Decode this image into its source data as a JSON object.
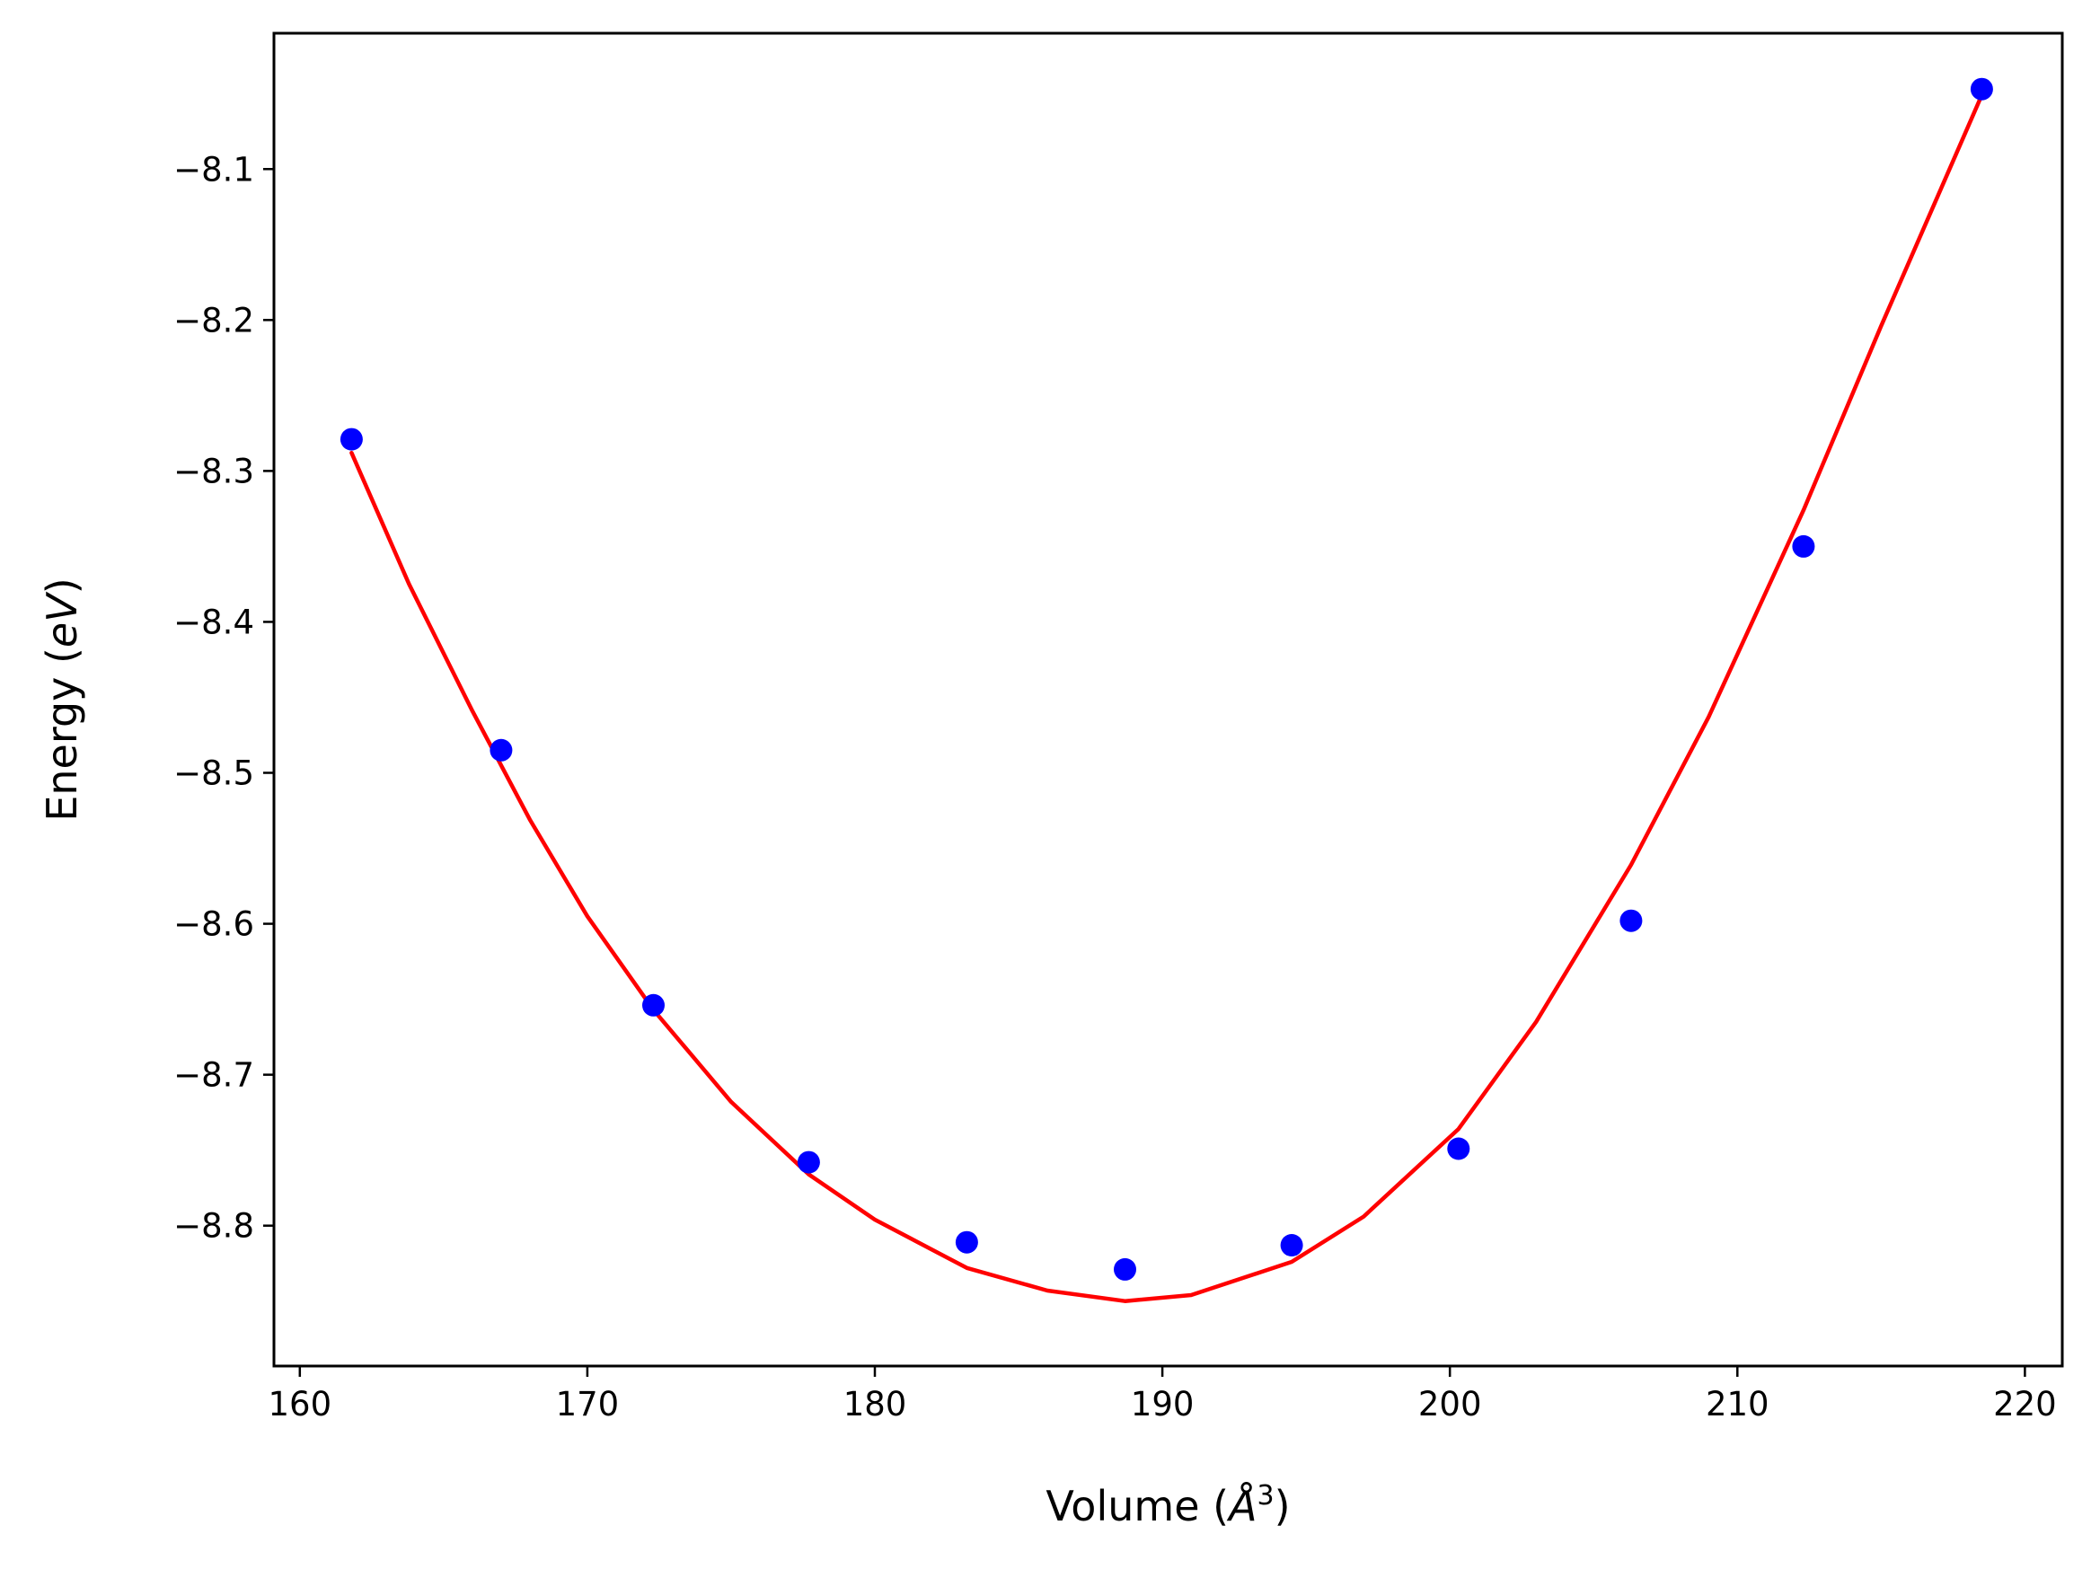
{
  "chart_data": {
    "type": "scatter",
    "title": "",
    "xlabel_parts": {
      "prefix": "Volume (",
      "unit": "Å",
      "power": "3",
      "suffix": ")"
    },
    "ylabel_parts": {
      "prefix": "Energy (",
      "unit": "eV",
      "suffix": ")"
    },
    "xlim": [
      159.1,
      221.3
    ],
    "ylim": [
      -8.893,
      -8.01
    ],
    "x_ticks": [
      160,
      170,
      180,
      190,
      200,
      210,
      220
    ],
    "y_ticks": [
      -8.8,
      -8.7,
      -8.6,
      -8.5,
      -8.4,
      -8.3,
      -8.2,
      -8.1
    ],
    "y_tick_labels": [
      "−8.8",
      "−8.7",
      "−8.6",
      "−8.5",
      "−8.4",
      "−8.3",
      "−8.2",
      "−8.1"
    ],
    "grid": false,
    "series": [
      {
        "kind": "points",
        "color": "#0000ff",
        "x": [
          161.8,
          167.0,
          172.3,
          177.7,
          183.2,
          188.7,
          194.5,
          200.3,
          206.3,
          212.3,
          218.5
        ],
        "y": [
          -8.279,
          -8.485,
          -8.654,
          -8.758,
          -8.811,
          -8.829,
          -8.813,
          -8.749,
          -8.598,
          -8.35,
          -8.047
        ]
      },
      {
        "kind": "fit-line",
        "color": "#ff0000",
        "x": [
          161.8,
          163.8,
          166.0,
          168.0,
          170.0,
          172.3,
          175.0,
          177.7,
          180.0,
          183.2,
          186.0,
          188.7,
          191.0,
          194.5,
          197.0,
          200.3,
          203.0,
          206.3,
          209.0,
          212.3,
          215.0,
          218.5
        ],
        "y": [
          -8.288,
          -8.375,
          -8.459,
          -8.531,
          -8.595,
          -8.657,
          -8.718,
          -8.766,
          -8.796,
          -8.828,
          -8.843,
          -8.85,
          -8.846,
          -8.824,
          -8.794,
          -8.736,
          -8.665,
          -8.561,
          -8.463,
          -8.326,
          -8.204,
          -8.051
        ]
      }
    ]
  }
}
